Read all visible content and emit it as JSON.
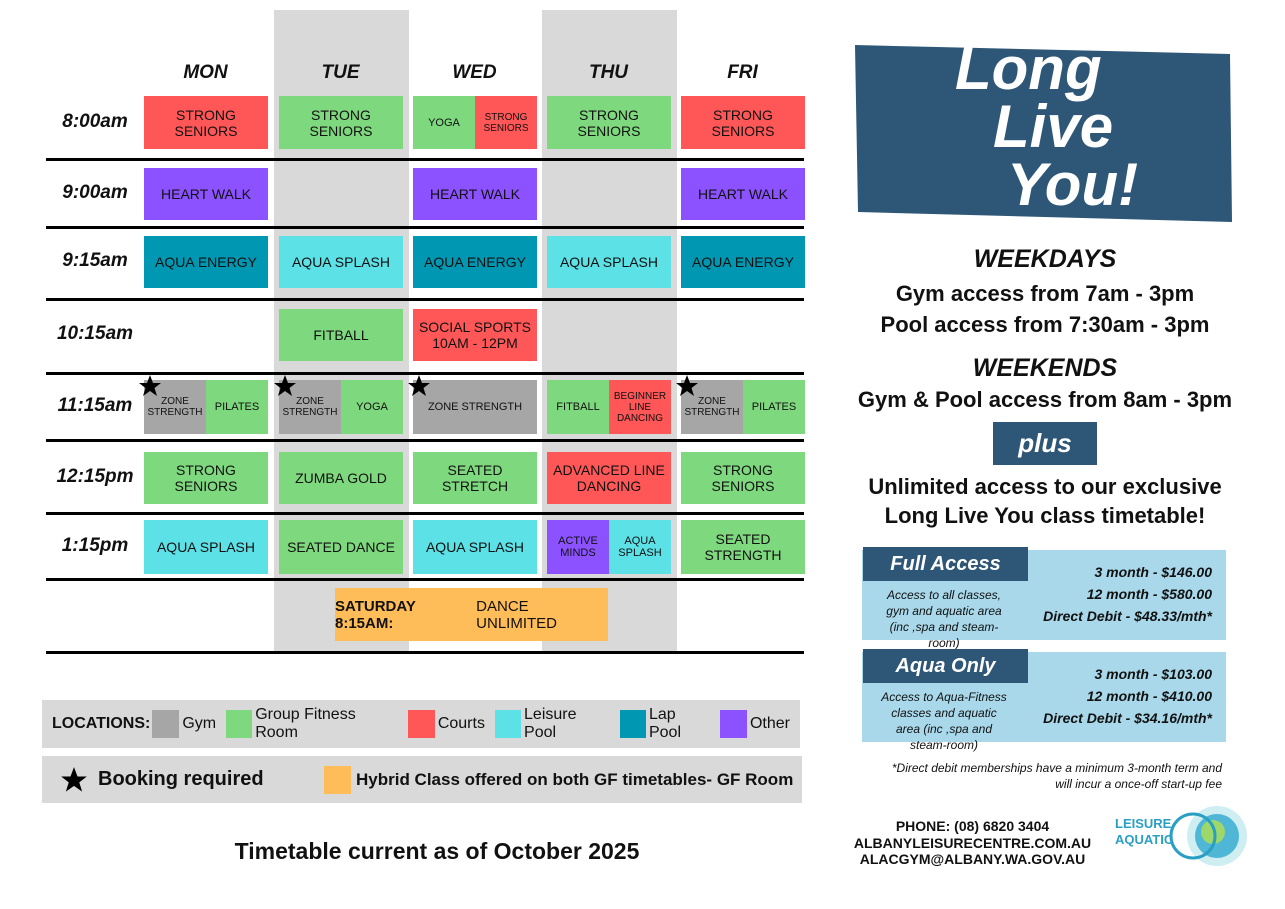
{
  "timetable": {
    "days": [
      "MON",
      "TUE",
      "WED",
      "THU",
      "FRI"
    ],
    "rows": [
      {
        "time": "8:00am",
        "cells": [
          [
            {
              "label": "STRONG SENIORS",
              "color": "#ff5757"
            }
          ],
          [
            {
              "label": "STRONG SENIORS",
              "color": "#7ed87e"
            }
          ],
          [
            {
              "label": "YOGA",
              "color": "#7ed87e"
            },
            {
              "label": "STRONG SENIORS",
              "color": "#ff5757"
            }
          ],
          [
            {
              "label": "STRONG SENIORS",
              "color": "#7ed87e"
            }
          ],
          [
            {
              "label": "STRONG SENIORS",
              "color": "#ff5757"
            }
          ]
        ]
      },
      {
        "time": "9:00am",
        "cells": [
          [
            {
              "label": "HEART WALK",
              "color": "#8c52ff"
            }
          ],
          [],
          [
            {
              "label": "HEART WALK",
              "color": "#8c52ff"
            }
          ],
          [],
          [
            {
              "label": "HEART WALK",
              "color": "#8c52ff"
            }
          ]
        ]
      },
      {
        "time": "9:15am",
        "cells": [
          [
            {
              "label": "AQUA ENERGY",
              "color": "#0097b2"
            }
          ],
          [
            {
              "label": "AQUA SPLASH",
              "color": "#5ce1e6"
            }
          ],
          [
            {
              "label": "AQUA ENERGY",
              "color": "#0097b2"
            }
          ],
          [
            {
              "label": "AQUA SPLASH",
              "color": "#5ce1e6"
            }
          ],
          [
            {
              "label": "AQUA ENERGY",
              "color": "#0097b2"
            }
          ]
        ]
      },
      {
        "time": "10:15am",
        "cells": [
          [],
          [
            {
              "label": "FITBALL",
              "color": "#7ed87e"
            }
          ],
          [
            {
              "label": "SOCIAL SPORTS 10AM - 12PM",
              "color": "#ff5757"
            }
          ],
          [],
          []
        ]
      },
      {
        "time": "11:15am",
        "cells": [
          [
            {
              "label": "ZONE STRENGTH",
              "color": "#a6a6a6",
              "booking": true
            },
            {
              "label": "PILATES",
              "color": "#7ed87e"
            }
          ],
          [
            {
              "label": "ZONE STRENGTH",
              "color": "#a6a6a6",
              "booking": true
            },
            {
              "label": "YOGA",
              "color": "#7ed87e"
            }
          ],
          [
            {
              "label": "ZONE STRENGTH",
              "color": "#a6a6a6",
              "booking": true
            }
          ],
          [
            {
              "label": "FITBALL",
              "color": "#7ed87e"
            },
            {
              "label": "BEGINNER LINE DANCING",
              "color": "#ff5757"
            }
          ],
          [
            {
              "label": "ZONE STRENGTH",
              "color": "#a6a6a6",
              "booking": true
            },
            {
              "label": "PILATES",
              "color": "#7ed87e"
            }
          ]
        ]
      },
      {
        "time": "12:15pm",
        "cells": [
          [
            {
              "label": "STRONG SENIORS",
              "color": "#7ed87e"
            }
          ],
          [
            {
              "label": "ZUMBA GOLD",
              "color": "#7ed87e"
            }
          ],
          [
            {
              "label": "SEATED STRETCH",
              "color": "#7ed87e"
            }
          ],
          [
            {
              "label": "ADVANCED LINE DANCING",
              "color": "#ff5757"
            }
          ],
          [
            {
              "label": "STRONG SENIORS",
              "color": "#7ed87e"
            }
          ]
        ]
      },
      {
        "time": "1:15pm",
        "cells": [
          [
            {
              "label": "AQUA SPLASH",
              "color": "#5ce1e6"
            }
          ],
          [
            {
              "label": "SEATED DANCE",
              "color": "#7ed87e"
            }
          ],
          [
            {
              "label": "AQUA SPLASH",
              "color": "#5ce1e6"
            }
          ],
          [
            {
              "label": "ACTIVE MINDS",
              "color": "#8c52ff"
            },
            {
              "label": "AQUA SPLASH",
              "color": "#5ce1e6"
            }
          ],
          [
            {
              "label": "SEATED STRENGTH",
              "color": "#7ed87e"
            }
          ]
        ]
      }
    ],
    "saturday": {
      "prefix": "SATURDAY 8:15AM:",
      "label": "DANCE UNLIMITED",
      "color": "#ffbd59"
    }
  },
  "legend": {
    "title": "LOCATIONS:",
    "locations": [
      {
        "name": "Gym",
        "color": "#a6a6a6"
      },
      {
        "name": "Group Fitness Room",
        "color": "#7ed87e"
      },
      {
        "name": "Courts",
        "color": "#ff5757"
      },
      {
        "name": "Leisure Pool",
        "color": "#5ce1e6"
      },
      {
        "name": "Lap Pool",
        "color": "#0097b2"
      },
      {
        "name": "Other",
        "color": "#8c52ff"
      }
    ],
    "booking": "Booking required",
    "hybrid": {
      "label": "Hybrid Class offered on both GF timetables- GF Room",
      "color": "#ffbd59"
    }
  },
  "footer": "Timetable current as of October 2025",
  "promo": {
    "title_lines": [
      "Long",
      "Live",
      "You!"
    ],
    "weekdays": {
      "heading": "WEEKDAYS",
      "lines": [
        "Gym access from 7am - 3pm",
        "Pool access from 7:30am - 3pm"
      ]
    },
    "weekends": {
      "heading": "WEEKENDS",
      "lines": [
        "Gym & Pool access from 8am - 3pm"
      ]
    },
    "plus": "plus",
    "unlimited_lines": [
      "Unlimited access to our exclusive",
      "Long Live You class timetable!"
    ],
    "plans": [
      {
        "name": "Full Access",
        "description": "Access to all classes, gym and aquatic area (inc ,spa and steam-room)",
        "prices": [
          "3 month - $146.00",
          "12 month - $580.00",
          "Direct Debit - $48.33/mth*"
        ]
      },
      {
        "name": "Aqua Only",
        "description": "Access to Aqua-Fitness classes and aquatic area (inc ,spa and steam-room)",
        "prices": [
          "3 month - $103.00",
          "12 month - $410.00",
          "Direct Debit - $34.16/mth*"
        ]
      }
    ],
    "note": "*Direct debit memberships have a minimum 3-month term and will incur a once-off start-up fee",
    "contact": [
      "PHONE: (08) 6820 3404",
      "ALBANYLEISURECENTRE.COM.AU",
      "ALACGYM@ALBANY.WA.GOV.AU"
    ],
    "logo": [
      "LEISURE",
      "AQUATIC"
    ]
  }
}
